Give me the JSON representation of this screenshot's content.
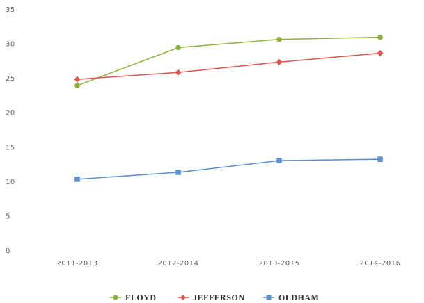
{
  "chart_data": {
    "type": "line",
    "categories": [
      "2011-2013",
      "2012-2014",
      "2013-2015",
      "2014-2016"
    ],
    "series": [
      {
        "name": "FLOYD",
        "color": "#8db33a",
        "marker": "circle",
        "values": [
          24.0,
          29.5,
          30.7,
          31.0
        ]
      },
      {
        "name": "JEFFERSON",
        "color": "#e0534a",
        "marker": "diamond",
        "values": [
          24.9,
          25.9,
          27.4,
          28.7
        ]
      },
      {
        "name": "OLDHAM",
        "color": "#5b8fcf",
        "marker": "square",
        "values": [
          10.4,
          11.4,
          13.1,
          13.3
        ]
      }
    ],
    "ylim": [
      0,
      35
    ],
    "yticks": [
      0,
      5,
      10,
      15,
      20,
      25,
      30,
      35
    ],
    "grid": false,
    "legend": "bottom"
  }
}
